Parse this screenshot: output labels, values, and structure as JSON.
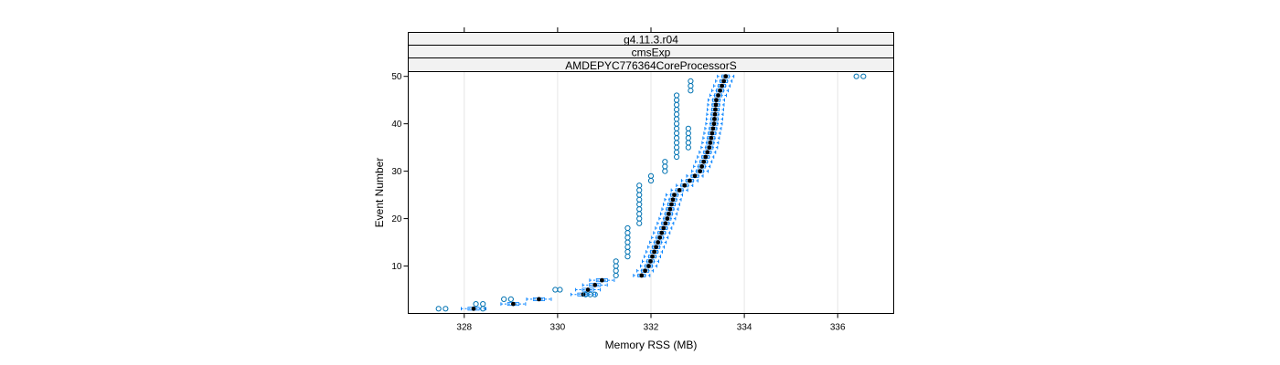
{
  "chart_data": {
    "type": "boxplot",
    "strips": [
      "g4.11.3.r04",
      "cmsExp",
      "AMDEPYC776364CoreProcessorS"
    ],
    "xlabel": "Memory RSS (MB)",
    "ylabel": "Event Number",
    "xlim": [
      326.8,
      337.2
    ],
    "ylim": [
      0,
      51
    ],
    "x_ticks": [
      328,
      330,
      332,
      334,
      336
    ],
    "y_ticks": [
      10,
      20,
      30,
      40,
      50
    ],
    "grid": true,
    "summary": {
      "events": [
        1,
        2,
        3,
        4,
        5,
        6,
        7,
        8,
        10,
        15,
        20,
        25,
        30,
        35,
        40,
        45,
        50
      ],
      "median": [
        328.2,
        329.05,
        329.6,
        330.55,
        330.65,
        330.8,
        330.95,
        331.8,
        331.95,
        332.15,
        332.35,
        332.5,
        333.05,
        333.25,
        333.35,
        333.4,
        333.6
      ]
    },
    "annotated_outliers": [
      {
        "event": 1,
        "values": [
          327.45,
          327.6,
          328.4
        ]
      },
      {
        "event": 2,
        "values": [
          328.25,
          328.4
        ]
      },
      {
        "event": 3,
        "values": [
          328.85,
          329.0
        ]
      },
      {
        "event": 5,
        "values": [
          329.95,
          330.05
        ]
      },
      {
        "event": 50,
        "values": [
          336.4,
          336.55
        ]
      }
    ]
  },
  "colors": {
    "box": "#0080ff",
    "outlier": "#0072b2",
    "median": "#000000",
    "strip_bg": "#f2f2f2",
    "frame": "#000000",
    "grid": "#e6e6e6"
  }
}
